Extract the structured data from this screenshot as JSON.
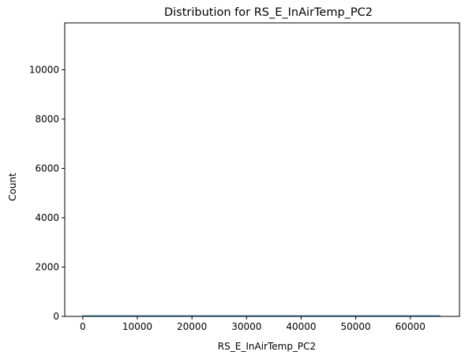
{
  "chart_data": {
    "type": "area",
    "title": "Distribution for RS_E_InAirTemp_PC2",
    "xlabel": "RS_E_InAirTemp_PC2",
    "ylabel": "Count",
    "xlim": [
      -3300,
      69000
    ],
    "ylim": [
      0,
      11900
    ],
    "xticks": [
      0,
      10000,
      20000,
      30000,
      40000,
      50000,
      60000
    ],
    "yticks": [
      0,
      2000,
      4000,
      6000,
      8000,
      10000
    ],
    "grid": false,
    "legend": false,
    "series": [
      {
        "x": [
          0,
          5000,
          10000,
          15000,
          20000,
          25000,
          30000,
          35000,
          40000,
          45000,
          50000,
          55000,
          60000,
          65500
        ],
        "values": [
          20,
          20,
          20,
          20,
          20,
          20,
          20,
          20,
          20,
          20,
          20,
          20,
          20,
          20
        ]
      }
    ],
    "colors": {
      "line": "#1f77b4",
      "fill": "#1f77b4"
    }
  }
}
